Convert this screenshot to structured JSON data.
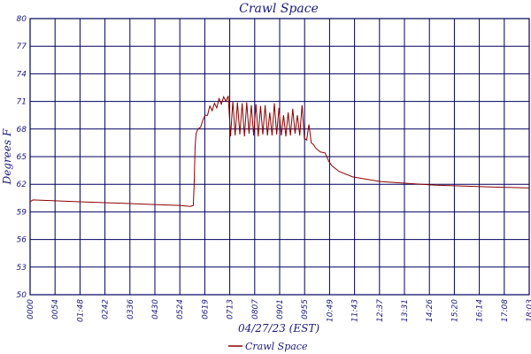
{
  "chart_data": {
    "type": "line",
    "title": "Crawl Space",
    "xlabel": "04/27/23 (EST)",
    "ylabel": "Degrees F",
    "x_ticks": [
      "0000",
      "0054",
      "01:48",
      "0242",
      "0336",
      "0430",
      "0524",
      "0619",
      "0713",
      "0807",
      "0901",
      "0955",
      "10:49",
      "11:43",
      "12:37",
      "13:31",
      "14:26",
      "15:20",
      "16:14",
      "17:08",
      "18:03"
    ],
    "y_ticks": [
      50,
      53,
      56,
      59,
      62,
      65,
      68,
      71,
      74,
      77,
      80
    ],
    "ylim": [
      50,
      80
    ],
    "x_range_minutes": [
      0,
      1083
    ],
    "grid": true,
    "legend_position": "bottom-center",
    "series": [
      {
        "name": "Crawl Space",
        "color": "#8b0000",
        "x": [
          0,
          6,
          54,
          108,
          162,
          216,
          270,
          324,
          348,
          354,
          356,
          358,
          360,
          364,
          370,
          375,
          380,
          385,
          390,
          395,
          400,
          405,
          410,
          415,
          420,
          425,
          430,
          435,
          440,
          445,
          450,
          455,
          460,
          465,
          470,
          475,
          480,
          485,
          490,
          495,
          500,
          505,
          510,
          515,
          520,
          525,
          530,
          535,
          540,
          545,
          550,
          555,
          560,
          565,
          570,
          575,
          580,
          585,
          590,
          595,
          600,
          605,
          610,
          615,
          620,
          630,
          640,
          648,
          655,
          670,
          700,
          760,
          820,
          880,
          940,
          1000,
          1083
        ],
        "y": [
          60.1,
          60.3,
          60.2,
          60.1,
          60.0,
          59.9,
          59.8,
          59.7,
          59.6,
          59.7,
          62.0,
          66.0,
          67.5,
          68.0,
          68.2,
          69.0,
          69.5,
          69.5,
          70.5,
          70.0,
          70.8,
          70.3,
          71.3,
          70.7,
          71.5,
          71.0,
          71.6,
          67.2,
          71.0,
          67.3,
          70.9,
          67.4,
          70.8,
          67.2,
          70.9,
          67.5,
          70.6,
          67.3,
          70.7,
          67.2,
          70.5,
          67.4,
          70.6,
          67.3,
          69.8,
          67.3,
          70.8,
          67.4,
          70.3,
          67.3,
          69.5,
          67.2,
          69.8,
          67.3,
          70.2,
          67.5,
          69.5,
          67.3,
          70.6,
          67.0,
          66.8,
          68.5,
          66.5,
          66.3,
          65.9,
          65.5,
          65.4,
          64.5,
          64.0,
          63.4,
          62.8,
          62.3,
          62.1,
          61.9,
          61.8,
          61.7,
          61.6
        ]
      }
    ]
  }
}
